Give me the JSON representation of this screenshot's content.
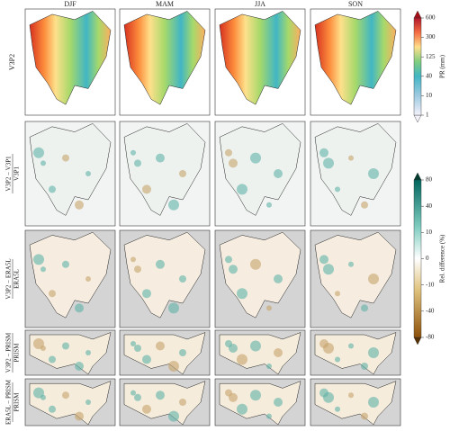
{
  "columns": [
    "DJF",
    "MAM",
    "JJA",
    "SON"
  ],
  "rows": [
    {
      "label": "V3P2"
    },
    {
      "numerator": "V3P2 − V3P1",
      "denominator": "V3P1"
    },
    {
      "numerator": "V3P2 − ERA5L",
      "denominator": "ERA5L"
    },
    {
      "numerator": "V3P2 − PRISM",
      "denominator": "PRISM"
    },
    {
      "numerator": "ERA5L − PRISM",
      "denominator": "PRISM"
    }
  ],
  "colorbars": [
    {
      "label": "PR (mm)",
      "ticks": [
        1,
        10,
        40,
        125,
        300,
        600
      ]
    },
    {
      "label": "Rel. difference (%)",
      "ticks": [
        -80,
        -40,
        -10,
        0,
        10,
        40,
        80
      ]
    }
  ]
}
